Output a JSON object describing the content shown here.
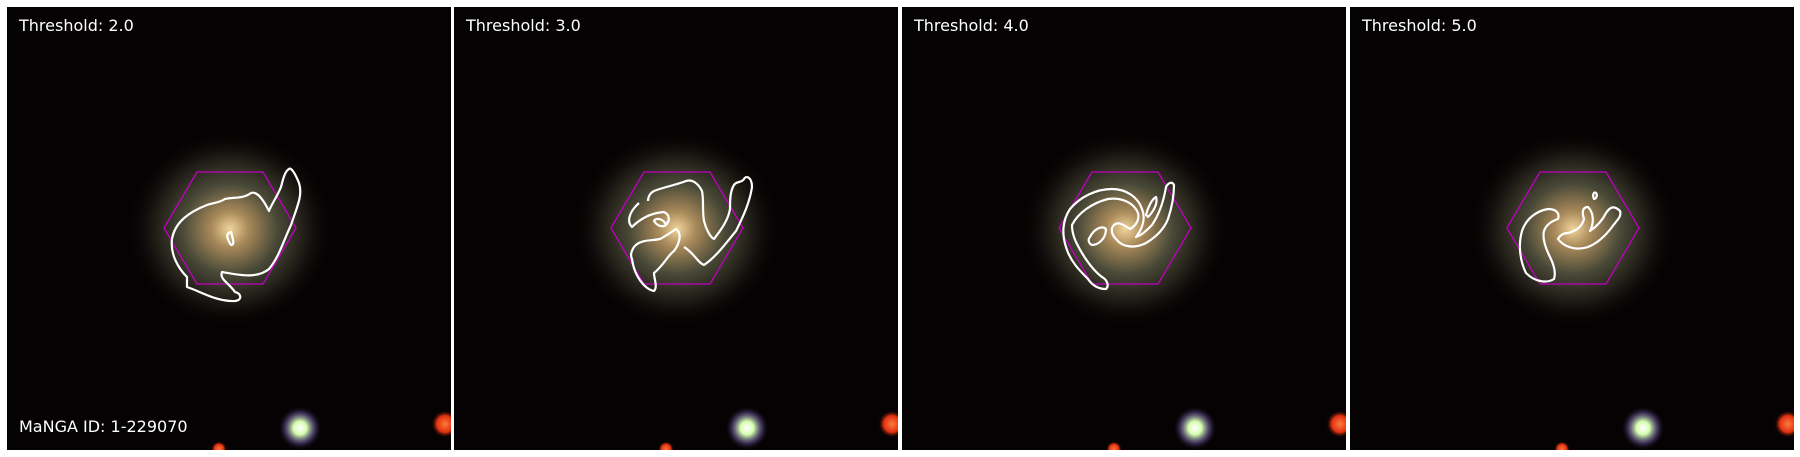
{
  "figure": {
    "panels": [
      {
        "threshold_label": "Threshold: 2.0",
        "id_label": "MaNGA ID: 1-229070"
      },
      {
        "threshold_label": "Threshold: 3.0",
        "id_label": ""
      },
      {
        "threshold_label": "Threshold: 4.0",
        "id_label": ""
      },
      {
        "threshold_label": "Threshold: 5.0",
        "id_label": ""
      }
    ]
  },
  "colors": {
    "background": "#050203",
    "galaxy_core": "#d8b27a",
    "contour": "#ffffff",
    "ifu_hexagon": "#c000c0",
    "star_green": "#e8ffd0",
    "star_red": "#ff4a1a"
  }
}
